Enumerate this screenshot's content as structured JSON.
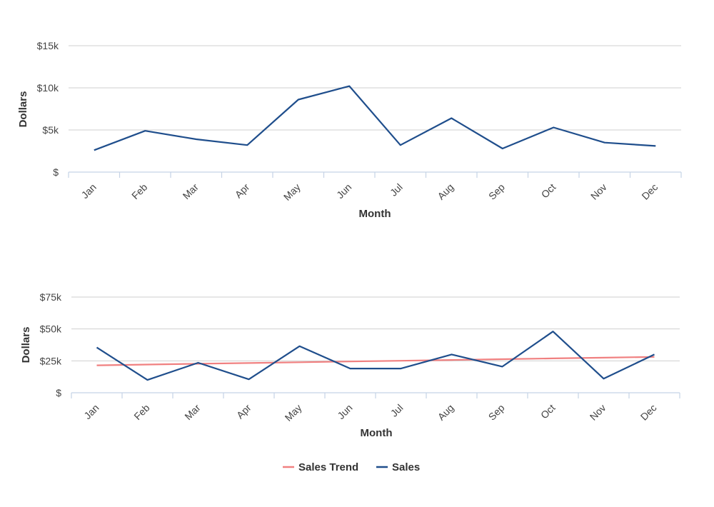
{
  "colors": {
    "sales": "#1f4e8c",
    "trend": "#f08080",
    "grid": "#cfcfcf",
    "axis": "#c5d3e6"
  },
  "chart_data": [
    {
      "type": "line",
      "categories": [
        "Jan",
        "Feb",
        "Mar",
        "Apr",
        "May",
        "Jun",
        "Jul",
        "Aug",
        "Sep",
        "Oct",
        "Nov",
        "Dec"
      ],
      "series": [
        {
          "name": "",
          "values": [
            2600,
            4900,
            3900,
            3200,
            8600,
            10200,
            3200,
            6400,
            2800,
            5300,
            3500,
            3100
          ]
        }
      ],
      "xlabel": "Month",
      "ylabel": "Dollars",
      "ylim": [
        0,
        15000
      ],
      "yticks": [
        0,
        5000,
        10000,
        15000
      ],
      "ytick_labels": [
        "$",
        "$5k",
        "$10k",
        "$15k"
      ],
      "grid": true
    },
    {
      "type": "line",
      "categories": [
        "Jan",
        "Feb",
        "Mar",
        "Apr",
        "May",
        "Jun",
        "Jul",
        "Aug",
        "Sep",
        "Oct",
        "Nov",
        "Dec"
      ],
      "series": [
        {
          "name": "Sales Trend",
          "values": [
            21500,
            22100,
            22700,
            23300,
            23900,
            24500,
            25100,
            25700,
            26300,
            26900,
            27500,
            28100
          ]
        },
        {
          "name": "Sales",
          "values": [
            35500,
            10000,
            23500,
            10500,
            36500,
            19000,
            19000,
            30000,
            20500,
            48000,
            11000,
            30000
          ]
        }
      ],
      "xlabel": "Month",
      "ylabel": "Dollars",
      "ylim": [
        0,
        75000
      ],
      "yticks": [
        0,
        25000,
        50000,
        75000
      ],
      "ytick_labels": [
        "$",
        "$25k",
        "$50k",
        "$75k"
      ],
      "grid": true,
      "legend": {
        "position": "bottom-center",
        "items": [
          "Sales Trend",
          "Sales"
        ]
      }
    }
  ]
}
